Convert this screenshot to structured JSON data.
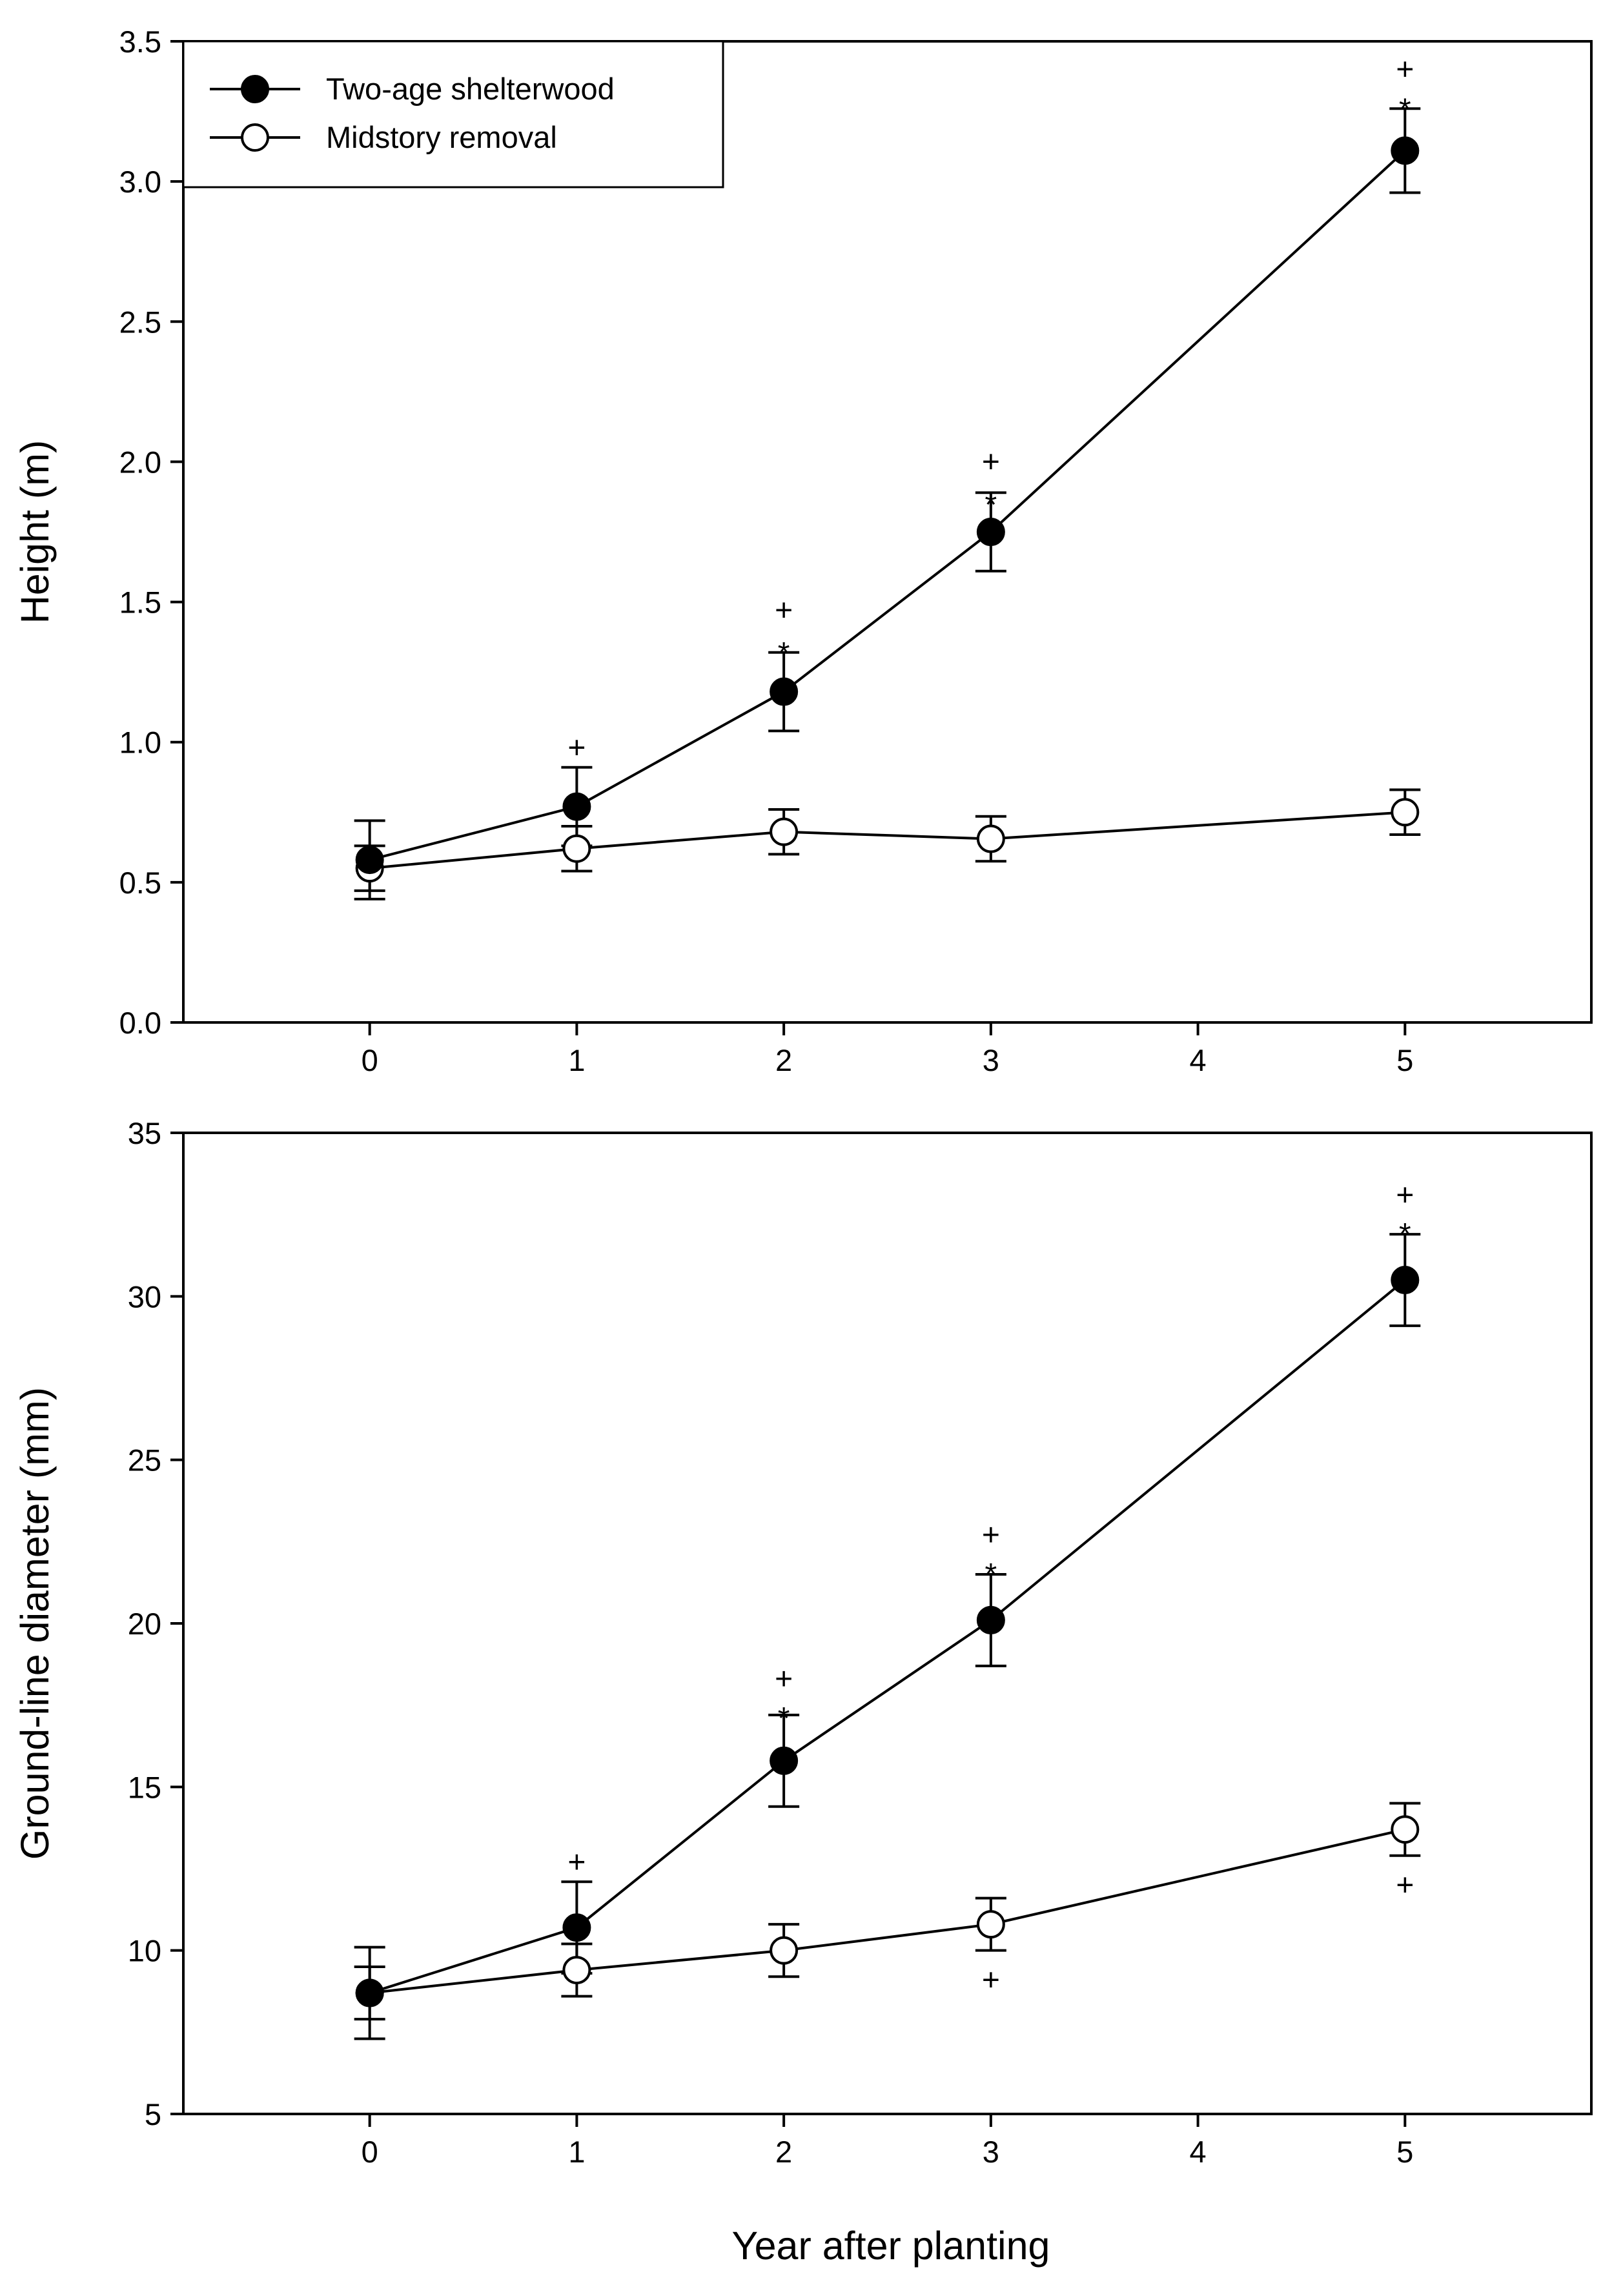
{
  "chart_data": [
    {
      "type": "line",
      "title": "",
      "xlabel": "",
      "ylabel": "Height (m)",
      "xlim": [
        -0.9,
        5.9
      ],
      "ylim": [
        0.0,
        3.5
      ],
      "grid": false,
      "xticks": [
        0,
        1,
        2,
        3,
        4,
        5
      ],
      "xtick_labels": [
        "0",
        "1",
        "2",
        "3",
        "4",
        "5"
      ],
      "yticks": [
        0.0,
        0.5,
        1.0,
        1.5,
        2.0,
        2.5,
        3.0,
        3.5
      ],
      "ytick_labels": [
        "0.0",
        "0.5",
        "1.0",
        "1.5",
        "2.0",
        "2.5",
        "3.0",
        "3.5"
      ],
      "legend": {
        "position": "top-left",
        "entries": [
          {
            "label": "Two-age shelterwood",
            "marker": "filled-circle"
          },
          {
            "label": "Midstory removal",
            "marker": "open-circle"
          }
        ]
      },
      "series": [
        {
          "name": "Two-age shelterwood",
          "marker": "filled-circle",
          "x": [
            0,
            1,
            2,
            3,
            5
          ],
          "y": [
            0.58,
            0.77,
            1.18,
            1.75,
            3.11
          ],
          "err": [
            0.14,
            0.14,
            0.14,
            0.14,
            0.15
          ]
        },
        {
          "name": "Midstory removal",
          "marker": "open-circle",
          "x": [
            0,
            1,
            2,
            3,
            5
          ],
          "y": [
            0.55,
            0.62,
            0.68,
            0.655,
            0.75
          ],
          "err": [
            0.08,
            0.08,
            0.08,
            0.08,
            0.08
          ]
        }
      ],
      "annotations": [
        {
          "x": 1,
          "y": 0.98,
          "text": "+"
        },
        {
          "x": 2,
          "y": 1.47,
          "text": "+"
        },
        {
          "x": 2,
          "y": 1.34,
          "text": "*"
        },
        {
          "x": 3,
          "y": 2.0,
          "text": "+"
        },
        {
          "x": 3,
          "y": 1.87,
          "text": "*"
        },
        {
          "x": 5,
          "y": 3.4,
          "text": "+"
        },
        {
          "x": 5,
          "y": 3.28,
          "text": "*"
        }
      ]
    },
    {
      "type": "line",
      "title": "",
      "xlabel": "Year after planting",
      "ylabel": "Ground-line diameter (mm)",
      "xlim": [
        -0.9,
        5.9
      ],
      "ylim": [
        5,
        35
      ],
      "grid": false,
      "xticks": [
        0,
        1,
        2,
        3,
        4,
        5
      ],
      "xtick_labels": [
        "0",
        "1",
        "2",
        "3",
        "4",
        "5"
      ],
      "yticks": [
        5,
        10,
        15,
        20,
        25,
        30,
        35
      ],
      "ytick_labels": [
        "5",
        "10",
        "15",
        "20",
        "25",
        "30",
        "35"
      ],
      "series": [
        {
          "name": "Two-age shelterwood",
          "marker": "filled-circle",
          "x": [
            0,
            1,
            2,
            3,
            5
          ],
          "y": [
            8.7,
            10.7,
            15.8,
            20.1,
            30.5
          ],
          "err": [
            1.4,
            1.4,
            1.4,
            1.4,
            1.4
          ]
        },
        {
          "name": "Midstory removal",
          "marker": "open-circle",
          "x": [
            0,
            1,
            2,
            3,
            5
          ],
          "y": [
            8.7,
            9.4,
            10.0,
            10.8,
            13.7
          ],
          "err": [
            0.8,
            0.8,
            0.8,
            0.8,
            0.8
          ]
        }
      ],
      "annotations": [
        {
          "x": 1,
          "y": 12.7,
          "text": "+"
        },
        {
          "x": 2,
          "y": 18.3,
          "text": "+"
        },
        {
          "x": 2,
          "y": 17.3,
          "text": "*"
        },
        {
          "x": 3,
          "y": 22.7,
          "text": "+"
        },
        {
          "x": 3,
          "y": 21.7,
          "text": "*"
        },
        {
          "x": 5,
          "y": 33.1,
          "text": "+"
        },
        {
          "x": 5,
          "y": 32.1,
          "text": "*"
        },
        {
          "x": 3,
          "y": 9.1,
          "text": "+"
        },
        {
          "x": 5,
          "y": 12.0,
          "text": "+"
        }
      ]
    }
  ]
}
